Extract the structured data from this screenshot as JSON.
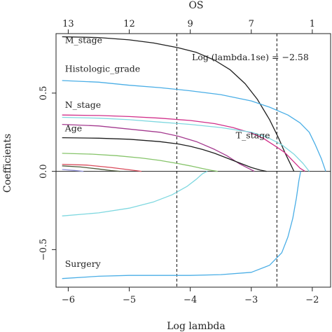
{
  "chart_data": {
    "type": "line",
    "title": "",
    "xlabel": "Log lambda",
    "ylabel": "Coefficients",
    "top_axis_label": "OS",
    "xlim": [
      -6.2,
      -1.7
    ],
    "ylim": [
      -0.74,
      0.88
    ],
    "x_ticks": [
      -6,
      -5,
      -4,
      -3,
      -2
    ],
    "y_ticks": [
      -0.5,
      0.0,
      0.5
    ],
    "x_tick_labels": [
      "−6",
      "−5",
      "−4",
      "−3",
      "−2"
    ],
    "y_tick_labels": [
      "−0.5",
      "0.0",
      "0.5"
    ],
    "top_ticks": [
      {
        "x": -6.0,
        "label": "13"
      },
      {
        "x": -5.0,
        "label": "12"
      },
      {
        "x": -4.0,
        "label": "9"
      },
      {
        "x": -3.0,
        "label": "7"
      },
      {
        "x": -2.0,
        "label": "1"
      }
    ],
    "reference_lines": [
      {
        "x": -4.22,
        "style": "dashed"
      },
      {
        "x": -2.58,
        "style": "dashed"
      }
    ],
    "annotations": [
      {
        "text": "Log (lambda.1se) = −2.58",
        "x": -3.9,
        "y": 0.78
      }
    ],
    "zero_line": true,
    "series": [
      {
        "name": "M_stage",
        "color": "#1e1e1e",
        "x": [
          -6.1,
          -5.5,
          -5.0,
          -4.6,
          -4.2,
          -3.9,
          -3.6,
          -3.35,
          -3.1,
          -2.9,
          -2.7,
          -2.55,
          -2.45,
          -2.35,
          -2.3
        ],
        "y": [
          0.86,
          0.855,
          0.84,
          0.82,
          0.79,
          0.76,
          0.71,
          0.65,
          0.56,
          0.46,
          0.33,
          0.21,
          0.12,
          0.04,
          0.0
        ],
        "label": {
          "x": -6.1,
          "y": 0.82
        }
      },
      {
        "name": "Histologic_grade",
        "color": "#4aaee6",
        "x": [
          -6.1,
          -5.5,
          -5.0,
          -4.5,
          -4.0,
          -3.5,
          -3.0,
          -2.7,
          -2.4,
          -2.2,
          -2.05,
          -1.95,
          -1.85,
          -1.78
        ],
        "y": [
          0.58,
          0.57,
          0.55,
          0.535,
          0.515,
          0.49,
          0.45,
          0.41,
          0.36,
          0.31,
          0.25,
          0.17,
          0.08,
          0.0
        ],
        "label": {
          "x": -6.1,
          "y": 0.635
        }
      },
      {
        "name": "N_stage",
        "color": "#d12f8a",
        "x": [
          -6.1,
          -5.5,
          -5.0,
          -4.5,
          -4.0,
          -3.6,
          -3.3,
          -3.0,
          -2.8,
          -2.6,
          -2.45,
          -2.3,
          -2.2,
          -2.12
        ],
        "y": [
          0.36,
          0.357,
          0.35,
          0.34,
          0.325,
          0.305,
          0.28,
          0.245,
          0.21,
          0.16,
          0.12,
          0.06,
          0.02,
          0.0
        ],
        "label": {
          "x": -6.1,
          "y": 0.405
        }
      },
      {
        "name": "",
        "color": "#7fd8e0",
        "x": [
          -6.1,
          -5.5,
          -5.0,
          -4.5,
          -4.0,
          -3.5,
          -3.0,
          -2.75,
          -2.5,
          -2.3,
          -2.15,
          -2.05
        ],
        "y": [
          0.345,
          0.34,
          0.33,
          0.315,
          0.3,
          0.28,
          0.25,
          0.22,
          0.17,
          0.11,
          0.05,
          0.0
        ],
        "label": null
      },
      {
        "name": "",
        "color": "#a43a8f",
        "x": [
          -6.1,
          -5.5,
          -5.0,
          -4.5,
          -4.2,
          -3.9,
          -3.6,
          -3.4,
          -3.2,
          -3.05,
          -2.95
        ],
        "y": [
          0.3,
          0.29,
          0.27,
          0.25,
          0.225,
          0.19,
          0.14,
          0.1,
          0.05,
          0.02,
          0.0
        ],
        "label": null
      },
      {
        "name": "Age",
        "color": "#1e1e1e",
        "x": [
          -6.1,
          -5.5,
          -5.0,
          -4.5,
          -4.2,
          -4.0,
          -3.8,
          -3.6,
          -3.4,
          -3.2,
          -3.0,
          -2.85,
          -2.75
        ],
        "y": [
          0.215,
          0.212,
          0.205,
          0.19,
          0.175,
          0.16,
          0.14,
          0.115,
          0.085,
          0.055,
          0.025,
          0.008,
          0.0
        ],
        "label": {
          "x": -6.1,
          "y": 0.255
        }
      },
      {
        "name": "",
        "color": "#86c46a",
        "x": [
          -6.1,
          -5.6,
          -5.2,
          -4.8,
          -4.5,
          -4.2,
          -4.0,
          -3.8,
          -3.65,
          -3.55
        ],
        "y": [
          0.115,
          0.11,
          0.1,
          0.085,
          0.07,
          0.05,
          0.035,
          0.018,
          0.006,
          0.0
        ],
        "label": null
      },
      {
        "name": "",
        "color": "#d94a5a",
        "x": [
          -6.1,
          -5.7,
          -5.3,
          -5.0,
          -4.8
        ],
        "y": [
          0.045,
          0.04,
          0.025,
          0.01,
          0.0
        ],
        "label": null
      },
      {
        "name": "",
        "color": "#4c5a3a",
        "x": [
          -6.1,
          -5.8,
          -5.5,
          -5.3,
          -5.15
        ],
        "y": [
          0.035,
          0.028,
          0.015,
          0.005,
          0.0
        ],
        "label": null
      },
      {
        "name": "",
        "color": "#8f8fd8",
        "x": [
          -6.1,
          -5.9,
          -5.75
        ],
        "y": [
          0.012,
          0.006,
          0.0
        ],
        "label": null
      },
      {
        "name": "T_stage",
        "color": "#7fd8e0",
        "x": [
          -6.1,
          -5.5,
          -5.0,
          -4.6,
          -4.3,
          -4.05,
          -3.9,
          -3.8,
          -3.72
        ],
        "y": [
          -0.285,
          -0.265,
          -0.235,
          -0.195,
          -0.15,
          -0.095,
          -0.05,
          -0.015,
          0.0
        ],
        "label": {
          "x": -3.3,
          "y": 0.21
        }
      },
      {
        "name": "Surgery",
        "color": "#4aaee6",
        "x": [
          -6.1,
          -5.5,
          -5.0,
          -4.5,
          -4.0,
          -3.5,
          -3.0,
          -2.7,
          -2.5,
          -2.4,
          -2.32,
          -2.26,
          -2.22,
          -2.19
        ],
        "y": [
          -0.685,
          -0.67,
          -0.665,
          -0.665,
          -0.665,
          -0.66,
          -0.645,
          -0.6,
          -0.52,
          -0.42,
          -0.3,
          -0.17,
          -0.06,
          0.0
        ],
        "label": {
          "x": -6.1,
          "y": -0.61
        }
      }
    ]
  }
}
